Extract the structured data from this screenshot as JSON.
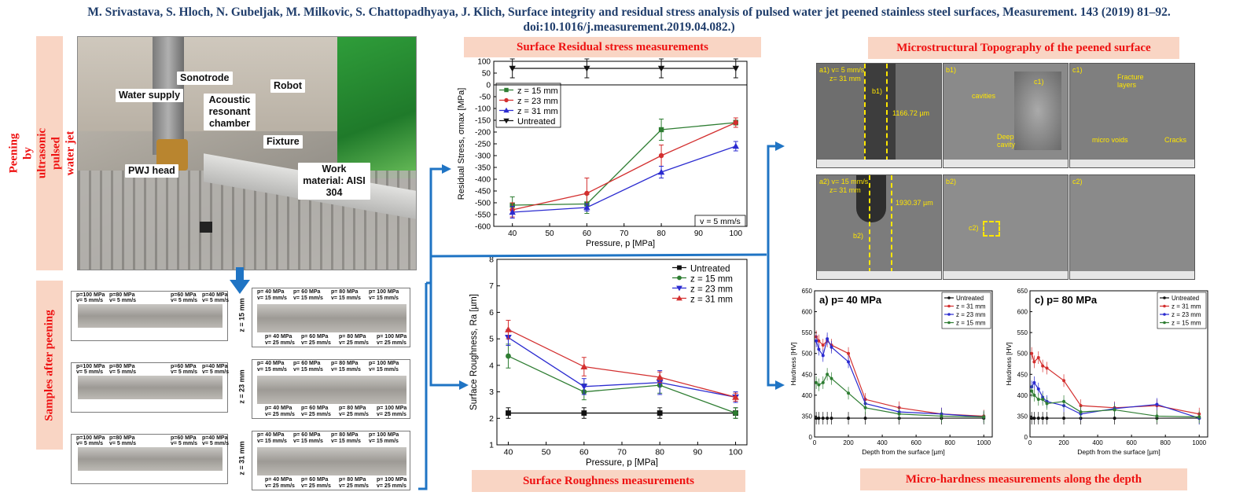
{
  "citation": "M. Srivastava, S. Hloch, N. Gubeljak, M. Milkovic, S. Chattopadhyaya, J. Klich, Surface integrity and residual stress analysis of pulsed water jet peened stainless steel surfaces, Measurement. 143 (2019) 81–92. doi:10.1016/j.measurement.2019.04.082.)",
  "left_panel": {
    "vertical_title": "Peening by ultrasonic pulsed water jet technology",
    "photo_labels": {
      "sonotrode": "Sonotrode",
      "robot": "Robot",
      "water_supply": "Water supply",
      "acoustic": "Acoustic resonant chamber",
      "fixture": "Fixture",
      "pwj_head": "PWJ head",
      "work_material": "Work material: AISI 304"
    },
    "samples_title": "Samples after peening",
    "z_labels": [
      "z = 15 mm",
      "z = 23 mm",
      "z = 31 mm"
    ],
    "left_row_labels": [
      {
        "p": "p=100 MPa",
        "v": "v= 5 mm/s"
      },
      {
        "p": "p=80 MPa",
        "v": "v= 5 mm/s"
      },
      {
        "p": "p=60 MPa",
        "v": "v= 5 mm/s"
      },
      {
        "p": "p=40 MPa",
        "v": "v= 5 mm/s"
      }
    ],
    "right_top_labels": [
      {
        "p": "p= 40 MPa",
        "v": "v= 15 mm/s"
      },
      {
        "p": "p= 60 MPa",
        "v": "v= 15 mm/s"
      },
      {
        "p": "p= 80 MPa",
        "v": "v= 15 mm/s"
      },
      {
        "p": "p= 100 MPa",
        "v": "v= 15 mm/s"
      }
    ],
    "right_bottom_labels": [
      {
        "p": "p= 40 MPa",
        "v": "v= 25 mm/s"
      },
      {
        "p": "p= 60 MPa",
        "v": "v= 25 mm/s"
      },
      {
        "p": "p= 80 MPa",
        "v": "v= 25 mm/s"
      },
      {
        "p": "p= 100 MPa",
        "v": "v= 25 mm/s"
      }
    ]
  },
  "center_panel": {
    "residual_title": "Surface Residual stress measurements",
    "roughness_title": "Surface Roughness measurements"
  },
  "right_panel": {
    "micro_title": "Microstructural Topography of the peened surface",
    "hardness_title": "Micro-hardness measurements along the depth",
    "sem_tags": {
      "a1": "a1) v= 5 mm/s",
      "a1z": "z= 31 mm",
      "b1": "b1)",
      "c1": "c1)",
      "len1": "1166.72 µm",
      "cavities": "cavities",
      "deep": "Deep cavity",
      "fracture": "Fracture layers",
      "voids": "micro voids",
      "cracks": "Cracks",
      "a2": "a2) v= 15 mm/s",
      "a2z": "z= 31 mm",
      "b2": "b2)",
      "c2": "c2)",
      "len2": "1930.37 µm"
    }
  },
  "chart_data": [
    {
      "type": "line",
      "title": "",
      "xlabel": "Pressure, p [MPa]",
      "ylabel": "Residual Stress, σmax [MPa]",
      "xlim": [
        35,
        103
      ],
      "ylim": [
        -600,
        100
      ],
      "xticks": [
        40,
        50,
        60,
        70,
        80,
        90,
        100
      ],
      "yticks": [
        100,
        50,
        0,
        -50,
        -100,
        -150,
        -200,
        -250,
        -300,
        -350,
        -400,
        -450,
        -500,
        -550,
        -600
      ],
      "x": [
        40,
        60,
        80,
        100
      ],
      "annotation": "v = 5 mm/s",
      "legend_position": "top-left",
      "series": [
        {
          "name": "z = 15 mm",
          "color": "#2e7d32",
          "marker": "square",
          "values": [
            -510,
            -505,
            -190,
            -160
          ],
          "err": [
            35,
            40,
            45,
            10
          ]
        },
        {
          "name": "z = 23 mm",
          "color": "#d32f2f",
          "marker": "circle",
          "values": [
            -530,
            -460,
            -300,
            -160
          ],
          "err": [
            30,
            65,
            45,
            20
          ]
        },
        {
          "name": "z = 31 mm",
          "color": "#2b2bd0",
          "marker": "triangle-up",
          "values": [
            -540,
            -520,
            -370,
            -260
          ],
          "err": [
            25,
            15,
            25,
            20
          ]
        },
        {
          "name": "Untreated",
          "color": "#111111",
          "marker": "triangle-down",
          "values": [
            70,
            70,
            70,
            70
          ],
          "err": [
            40,
            40,
            40,
            40
          ]
        }
      ]
    },
    {
      "type": "line",
      "title": "",
      "xlabel": "Pressure, p [MPa]",
      "ylabel": "Surface Roughness, Ra [µm]",
      "xlim": [
        37,
        103
      ],
      "ylim": [
        1,
        8
      ],
      "xticks": [
        40,
        50,
        60,
        70,
        80,
        90,
        100
      ],
      "yticks": [
        1,
        2,
        3,
        4,
        5,
        6,
        7,
        8
      ],
      "x": [
        40,
        60,
        80,
        100
      ],
      "legend_position": "top-right",
      "series": [
        {
          "name": "Untreated",
          "color": "#111111",
          "marker": "square",
          "values": [
            2.2,
            2.2,
            2.2,
            2.2
          ],
          "err": [
            0.2,
            0.2,
            0.2,
            0.2
          ]
        },
        {
          "name": "z = 15 mm",
          "color": "#2e7d32",
          "marker": "circle",
          "values": [
            4.35,
            3.0,
            3.25,
            2.2
          ],
          "err": [
            0.45,
            0.3,
            0.3,
            0.2
          ]
        },
        {
          "name": "z = 23 mm",
          "color": "#2b2bd0",
          "marker": "triangle-down",
          "values": [
            5.05,
            3.2,
            3.35,
            2.8
          ],
          "err": [
            0.3,
            0.3,
            0.45,
            0.2
          ]
        },
        {
          "name": "z = 31 mm",
          "color": "#d32f2f",
          "marker": "triangle-up",
          "values": [
            5.35,
            3.95,
            3.55,
            2.8
          ],
          "err": [
            0.35,
            0.35,
            0.2,
            0.15
          ]
        }
      ]
    },
    {
      "type": "line",
      "title": "a) p= 40 MPa",
      "xlabel": "Depth from the surface [µm]",
      "ylabel": "Hardness [HV]",
      "xlim": [
        0,
        1050
      ],
      "ylim": [
        0,
        650
      ],
      "xticks": [
        0,
        200,
        400,
        600,
        800,
        1000
      ],
      "yticks": [
        0,
        350,
        400,
        450,
        500,
        550,
        600,
        650
      ],
      "legend_position": "top-right",
      "x": [
        10,
        25,
        50,
        75,
        100,
        200,
        300,
        500,
        750,
        1000
      ],
      "series": [
        {
          "name": "Untreated",
          "color": "#111111",
          "values": [
            345,
            345,
            345,
            345,
            345,
            345,
            345,
            345,
            345,
            345
          ]
        },
        {
          "name": "z = 31 mm",
          "color": "#d32f2f",
          "values": [
            540,
            530,
            520,
            530,
            520,
            500,
            390,
            370,
            355,
            350
          ]
        },
        {
          "name": "z = 23 mm",
          "color": "#2b2bd0",
          "values": [
            530,
            510,
            495,
            535,
            515,
            480,
            380,
            360,
            355,
            348
          ]
        },
        {
          "name": "z = 15 mm",
          "color": "#2e7d32",
          "values": [
            430,
            425,
            430,
            450,
            440,
            405,
            370,
            355,
            350,
            348
          ]
        }
      ]
    },
    {
      "type": "line",
      "title": "c) p= 80 MPa",
      "xlabel": "Depth from the surface [µm]",
      "ylabel": "Hardness [HV]",
      "xlim": [
        0,
        1050
      ],
      "ylim": [
        0,
        650
      ],
      "xticks": [
        0,
        200,
        400,
        600,
        800,
        1000
      ],
      "yticks": [
        0,
        350,
        400,
        450,
        500,
        550,
        600,
        650
      ],
      "legend_position": "top-right",
      "x": [
        10,
        25,
        50,
        75,
        100,
        200,
        300,
        500,
        750,
        1000
      ],
      "series": [
        {
          "name": "Untreated",
          "color": "#111111",
          "values": [
            345,
            345,
            345,
            345,
            345,
            345,
            345,
            345,
            345,
            345
          ]
        },
        {
          "name": "z = 31 mm",
          "color": "#d32f2f",
          "values": [
            500,
            480,
            490,
            470,
            465,
            435,
            375,
            370,
            375,
            355
          ]
        },
        {
          "name": "z = 23 mm",
          "color": "#2b2bd0",
          "values": [
            420,
            430,
            415,
            395,
            385,
            375,
            355,
            368,
            378,
            345
          ]
        },
        {
          "name": "z = 15 mm",
          "color": "#2e7d32",
          "values": [
            410,
            400,
            390,
            390,
            380,
            385,
            360,
            365,
            350,
            348
          ]
        }
      ]
    }
  ]
}
